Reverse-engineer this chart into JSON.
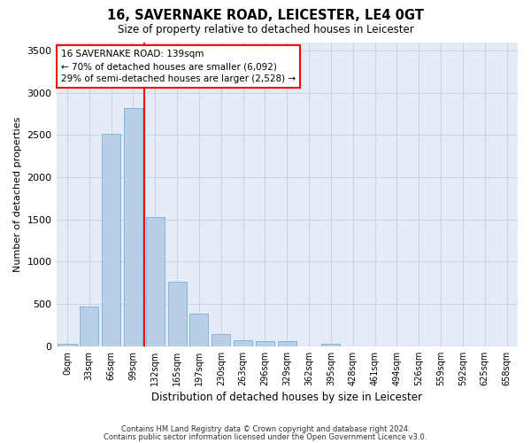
{
  "title1": "16, SAVERNAKE ROAD, LEICESTER, LE4 0GT",
  "title2": "Size of property relative to detached houses in Leicester",
  "xlabel": "Distribution of detached houses by size in Leicester",
  "ylabel": "Number of detached properties",
  "bar_labels": [
    "0sqm",
    "33sqm",
    "66sqm",
    "99sqm",
    "132sqm",
    "165sqm",
    "197sqm",
    "230sqm",
    "263sqm",
    "296sqm",
    "329sqm",
    "362sqm",
    "395sqm",
    "428sqm",
    "461sqm",
    "494sqm",
    "526sqm",
    "559sqm",
    "592sqm",
    "625sqm",
    "658sqm"
  ],
  "bar_values": [
    25,
    475,
    2510,
    2820,
    1530,
    760,
    385,
    145,
    75,
    60,
    60,
    0,
    30,
    0,
    0,
    0,
    0,
    0,
    0,
    0,
    0
  ],
  "bar_color": "#b8cfe8",
  "bar_edge_color": "#7aafd4",
  "vline_color": "red",
  "annotation_text": "16 SAVERNAKE ROAD: 139sqm\n← 70% of detached houses are smaller (6,092)\n29% of semi-detached houses are larger (2,528) →",
  "annotation_box_color": "red",
  "ylim": [
    0,
    3600
  ],
  "yticks": [
    0,
    500,
    1000,
    1500,
    2000,
    2500,
    3000,
    3500
  ],
  "grid_color": "#c8d4e8",
  "bg_color": "#e4ecf7",
  "footer1": "Contains HM Land Registry data © Crown copyright and database right 2024.",
  "footer2": "Contains public sector information licensed under the Open Government Licence v3.0."
}
